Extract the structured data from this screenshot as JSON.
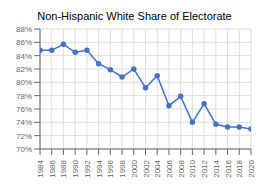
{
  "chart_data": {
    "type": "line",
    "title": "Non-Hispanic White Share of Electorate",
    "x": [
      1984,
      1986,
      1988,
      1990,
      1992,
      1994,
      1996,
      1998,
      2000,
      2002,
      2004,
      2006,
      2008,
      2010,
      2012,
      2014,
      2016,
      2018,
      2020
    ],
    "values": [
      84.8,
      84.8,
      85.7,
      84.5,
      84.8,
      82.8,
      81.9,
      80.8,
      82.0,
      79.2,
      81.0,
      76.5,
      77.9,
      74.0,
      76.8,
      73.7,
      73.3,
      73.3,
      73.0
    ],
    "color": "#4472C4",
    "marker": "o",
    "xlim": [
      1984,
      2020
    ],
    "xticks": [
      1984,
      1986,
      1988,
      1990,
      1992,
      1994,
      1996,
      1998,
      2000,
      2002,
      2004,
      2006,
      2008,
      2010,
      2012,
      2014,
      2016,
      2018,
      2020
    ],
    "ylim": [
      70,
      88
    ],
    "yticks": [
      {
        "value": 70,
        "label": "70%"
      },
      {
        "value": 72,
        "label": "72%"
      },
      {
        "value": 74,
        "label": "74%"
      },
      {
        "value": 76,
        "label": "76%"
      },
      {
        "value": 78,
        "label": "78%"
      },
      {
        "value": 80,
        "label": "80%"
      },
      {
        "value": 82,
        "label": "82%"
      },
      {
        "value": 84,
        "label": "84%"
      },
      {
        "value": 86,
        "label": "86%"
      },
      {
        "value": 88,
        "label": "88%"
      }
    ],
    "grid": true
  }
}
